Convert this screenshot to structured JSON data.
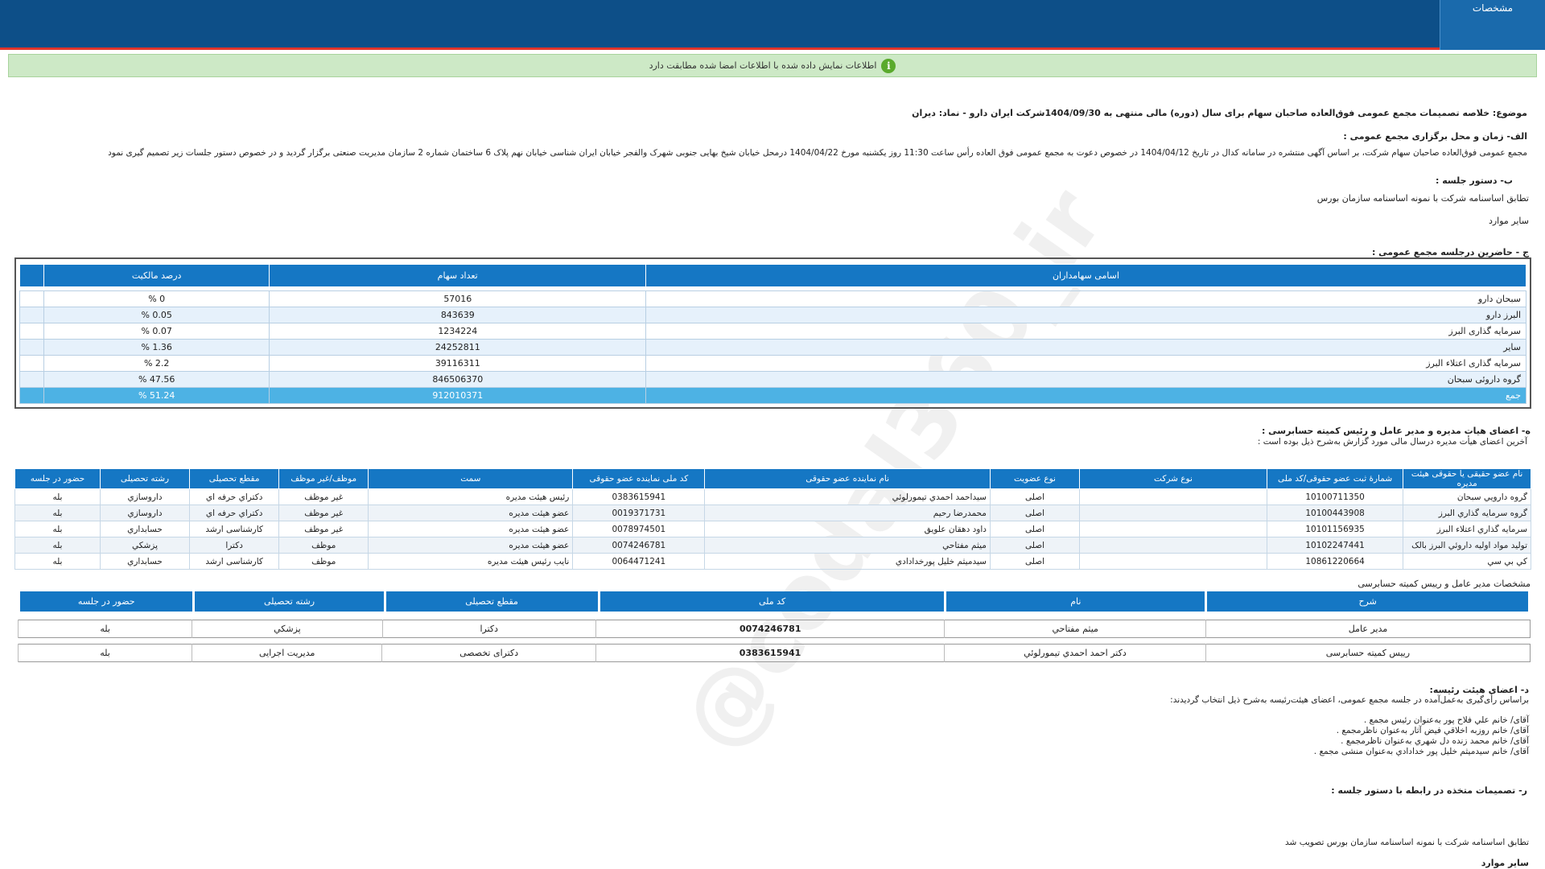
{
  "header": {
    "tab_label": "مشخصات"
  },
  "alert": {
    "text": "اطلاعات نمایش داده شده با اطلاعات امضا شده مطابقت دارد",
    "icon": "info-icon"
  },
  "subject": "موضوع: خلاصه تصمیمات مجمع عمومی فوق‌العاده صاحبان سهام برای سال (دوره) مالی منتهی به 1404/09/30شرکت ایران دارو - نماد: دیران",
  "section_a": {
    "title": "الف- زمان و محل برگزاری مجمع عمومی :",
    "text": "مجمع عمومی فوق‌العاده صاحبان سهام شرکت، بر اساس آگهی منتشره در سامانه کدال در تاریخ 1404/04/12 در خصوص دعوت به مجمع عمومی فوق العاده رأس ساعت 11:30 روز یکشنبه مورخ 1404/04/22 درمحل خیابان شیخ بهایی جنوبی شهرک والفجر خیابان ایران شناسی خیابان نهم پلاک 6 ساختمان شماره 2 سازمان مدیریت صنعتی   برگزار گردید و در خصوص دستور جلسات زیر تصمیم گیری نمود"
  },
  "section_b": {
    "title": "ب- دستور جلسه :",
    "items": [
      "تطابق اساسنامه شرکت با نمونه اساسنامه سازمان بورس",
      "سایر موارد"
    ]
  },
  "section_c": {
    "title": "ج - حاضرین درجلسه مجمع عمومی :",
    "headers": [
      "اسامی سهامداران",
      "تعداد سهام",
      "درصد مالکیت"
    ],
    "rows": [
      [
        "سبحان دارو",
        "57016",
        "0 %"
      ],
      [
        "البرز دارو",
        "843639",
        "0.05 %"
      ],
      [
        "سرمایه گذاری البرز",
        "1234224",
        "0.07 %"
      ],
      [
        "سایر",
        "24252811",
        "1.36 %"
      ],
      [
        "سرمایه گذاری اعتلاء البرز",
        "39116311",
        "2.2 %"
      ],
      [
        "گروه داروئی سبحان",
        "846506370",
        "47.56 %"
      ]
    ],
    "total": [
      "جمع",
      "912010371",
      "51.24 %"
    ]
  },
  "section_d": {
    "title": "ه- اعضای هیات مدیره و مدیر عامل و رئیس کمیته حسابرسی :",
    "subtitle": "آخرین اعضای هیأت مدیره درسال مالی مورد گزارش به‌شرح ذیل بوده است :",
    "headers": [
      "نام عضو حقیقی یا حقوقی هیئت مدیره",
      "شمارۀ ثبت عضو حقوقی/کد ملی",
      "نوع شرکت",
      "نوع عضویت",
      "نام نماینده عضو حقوقی",
      "کد ملی نماینده عضو حقوقی",
      "سمت",
      "موظف/غیر موظف",
      "مقطع تحصیلی",
      "رشته تحصیلی",
      "حضور در جلسه"
    ],
    "rows": [
      [
        "گروه دارويي سبحان",
        "10100711350",
        "",
        "اصلی",
        "سیداحمد احمدي تیمورلوئي",
        "0383615941",
        "رئیس هیئت مدیره",
        "غیر موظف",
        "دکتراي حرفه اي",
        "داروسازي",
        "بله"
      ],
      [
        "گروه سرمايه گذاري البرز",
        "10100443908",
        "",
        "اصلی",
        "محمدرضا رحیم",
        "0019371731",
        "عضو هیئت مدیره",
        "غیر موظف",
        "دکتراي حرفه اي",
        "داروسازي",
        "بله"
      ],
      [
        "سرمايه گذاري اعتلاء البرز",
        "10101156935",
        "",
        "اصلی",
        "داود دهقان علويق",
        "0078974501",
        "عضو هیئت مدیره",
        "غیر موظف",
        "کارشناسی ارشد",
        "حسابداري",
        "بله"
      ],
      [
        "توليد مواد اوليه داروئي البرز بالک",
        "10102247441",
        "",
        "اصلی",
        "میثم مفتاحي",
        "0074246781",
        "عضو هیئت مدیره",
        "موظف",
        "دکترا",
        "پزشکي",
        "بله"
      ],
      [
        "کي بي سي",
        "10861220664",
        "",
        "اصلی",
        "سیدمیثم خلیل پورخدادادي",
        "0064471241",
        "نایب رئیس هیئت مدیره",
        "موظف",
        "کارشناسی ارشد",
        "حسابداري",
        "بله"
      ]
    ]
  },
  "section_mgr": {
    "title": "مشخصات مدیر عامل و رییس کمیته حسابرسی",
    "headers": [
      "شرح",
      "نام",
      "کد ملی",
      "مقطع تحصیلی",
      "رشته تحصیلی",
      "حضور در جلسه"
    ],
    "rows": [
      [
        "مدیر عامل",
        "میثم مفتاحي",
        "0074246781",
        "دکترا",
        "پزشکي",
        "بله"
      ],
      [
        "رییس کمیته حسابرسی",
        "دکتر احمد احمدي تیمورلوئي",
        "0383615941",
        "دکترای تخصصی",
        "مدیریت اجرایی",
        "بله"
      ]
    ]
  },
  "section_e": {
    "title": "د- اعضای هیئت رئیسه:",
    "intro": "براساس رأی‌گیری به‌عمل‌آمده در جلسه مجمع عمومی، اعضای هیئت‌رئیسه به‌شرح ذیل انتخاب گردیدند:",
    "items": [
      "آقای/ خانم   علي فلاح پور  به‌عنوان رئیس مجمع .",
      "آقای/ خانم   روزبه اخلاقي فيض آثار  به‌عنوان ناظرمجمع .",
      "آقای/ خانم   محمد زنده دل شهري  به‌عنوان ناظرمجمع .",
      "آقای/ خانم   سيدميثم خليل پور خدادادي  به‌عنوان منشی مجمع ."
    ]
  },
  "section_f": {
    "title": "ر- تصمیمات متخذه در رابطه با دستور جلسه :",
    "text": "تطابق اساسنامه شرکت با نمونه اساسنامه سازمان بورس تصویب شد",
    "last_title": "سایر موارد"
  },
  "watermark": "@codal360_ir"
}
